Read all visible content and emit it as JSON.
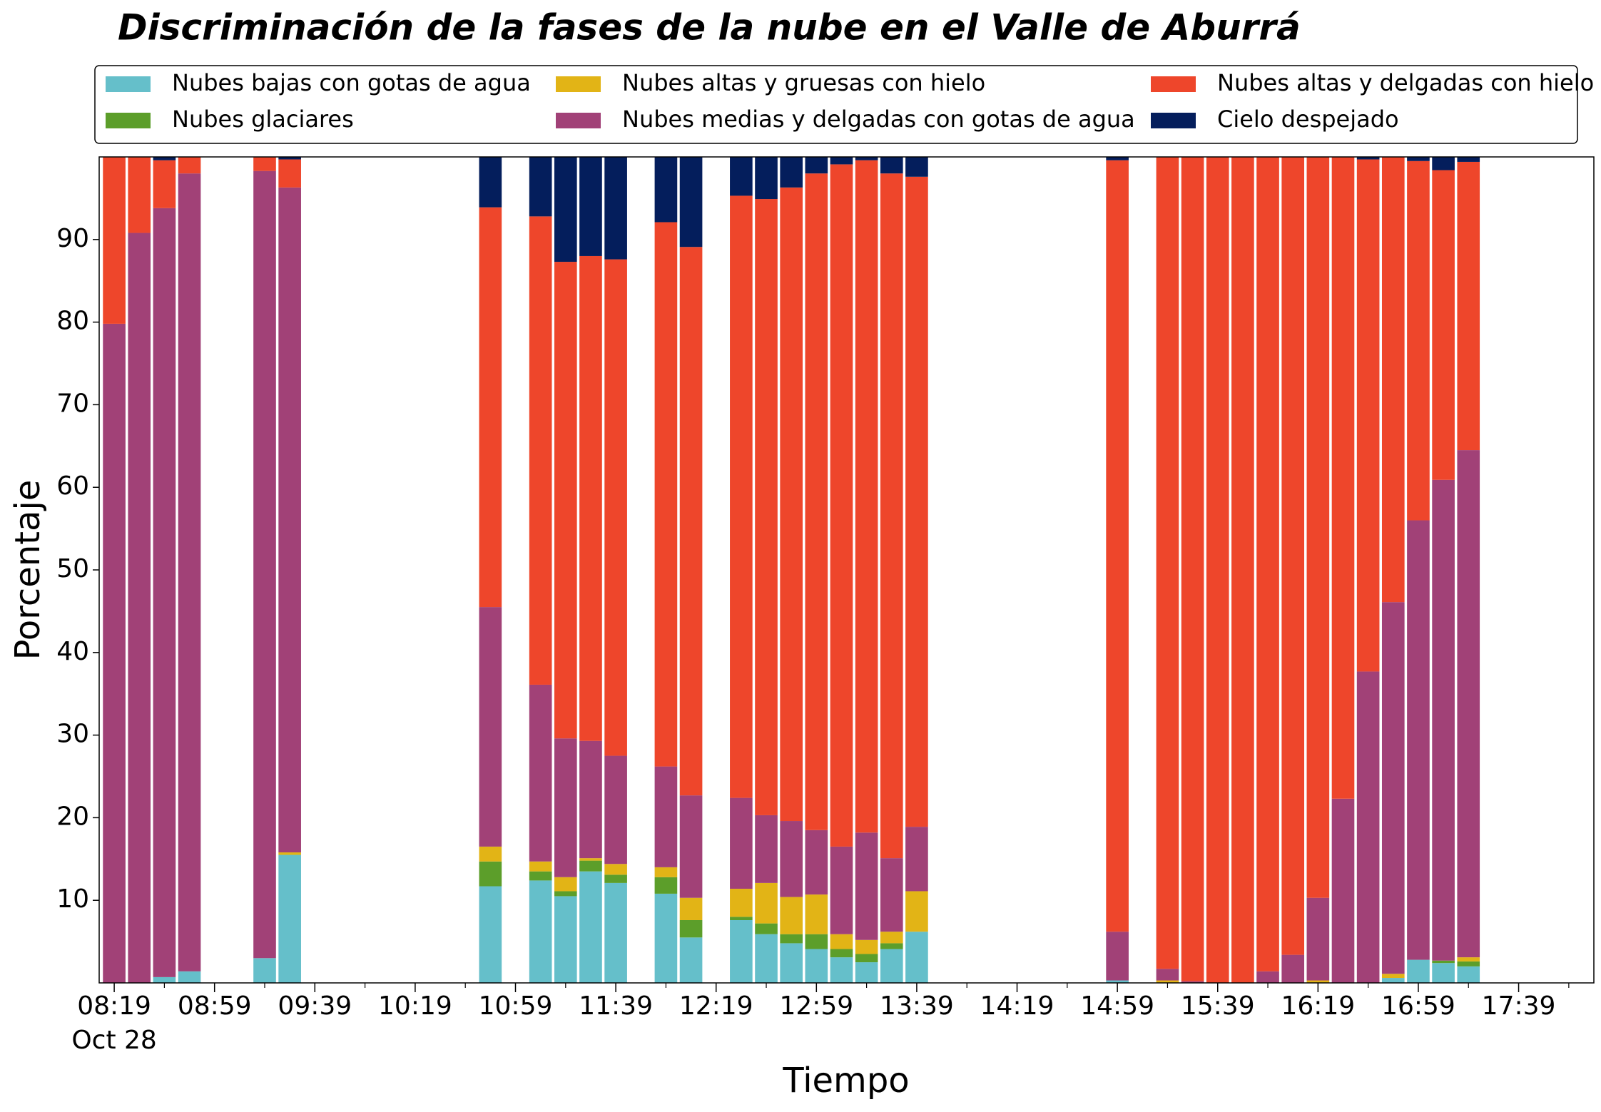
{
  "chart_data": {
    "type": "bar",
    "stacked": true,
    "title": "Discriminación de la fases de la nube en el Valle de Aburrá",
    "xlabel": "Tiempo",
    "ylabel": "Porcentaje",
    "x": [
      "08:19",
      "08:29",
      "08:39",
      "08:49",
      "09:19",
      "09:29",
      "10:49",
      "11:09",
      "11:19",
      "11:29",
      "11:39",
      "11:59",
      "12:09",
      "12:29",
      "12:39",
      "12:49",
      "12:59",
      "13:09",
      "13:19",
      "13:29",
      "13:39",
      "14:59",
      "15:19",
      "15:29",
      "15:39",
      "15:49",
      "15:59",
      "16:09",
      "16:19",
      "16:29",
      "16:39",
      "16:49",
      "16:59",
      "17:09",
      "17:19"
    ],
    "series": [
      {
        "name": "Nubes bajas con gotas de agua",
        "color": "#65bfca",
        "values": [
          0,
          0,
          0.7,
          1.4,
          3,
          15.5,
          11.7,
          12.4,
          10.5,
          13.5,
          12.1,
          10.8,
          5.5,
          7.6,
          5.9,
          4.8,
          4.1,
          3.1,
          2.5,
          4.1,
          6.2,
          0.3,
          0,
          0,
          0,
          0,
          0,
          0,
          0,
          0,
          0,
          0.6,
          2.8,
          2.4,
          2.0
        ]
      },
      {
        "name": "Nubes glaciares",
        "color": "#5c9e2a",
        "values": [
          0,
          0,
          0,
          0,
          0,
          0,
          3.0,
          1.1,
          0.6,
          1.3,
          1.0,
          2.0,
          2.1,
          0.4,
          1.3,
          1.1,
          1.8,
          1.0,
          1.0,
          0.7,
          0,
          0,
          0,
          0,
          0,
          0,
          0,
          0,
          0,
          0,
          0,
          0,
          0,
          0.3,
          0.6
        ]
      },
      {
        "name": "Nubes altas y gruesas con hielo",
        "color": "#e2b416",
        "values": [
          0,
          0,
          0,
          0,
          0,
          0.3,
          1.8,
          1.2,
          1.7,
          0.3,
          1.3,
          1.2,
          2.7,
          3.4,
          4.9,
          4.5,
          4.8,
          1.8,
          1.7,
          1.4,
          4.9,
          0,
          0.3,
          0,
          0,
          0,
          0,
          0,
          0.3,
          0,
          0,
          0.5,
          0,
          0,
          0.5
        ]
      },
      {
        "name": "Nubes medias y delgadas con gotas de agua",
        "color": "#a14177",
        "values": [
          79.8,
          90.8,
          93.1,
          96.6,
          95.3,
          80.5,
          29.0,
          21.4,
          16.8,
          14.2,
          13.1,
          12.2,
          12.4,
          11.0,
          8.2,
          9.2,
          7.8,
          10.6,
          13.0,
          8.9,
          7.8,
          5.9,
          1.4,
          0.2,
          0,
          0,
          1.4,
          3.4,
          10.0,
          22.3,
          37.7,
          45.0,
          53.2,
          58.2,
          61.4
        ]
      },
      {
        "name": "Nubes altas y delgadas con hielo",
        "color": "#ee462b",
        "values": [
          20.2,
          9.2,
          5.8,
          2.0,
          1.7,
          3.4,
          48.4,
          56.7,
          57.7,
          58.7,
          60.1,
          65.9,
          66.4,
          72.9,
          74.6,
          76.7,
          79.5,
          82.6,
          81.4,
          82.9,
          78.7,
          93.4,
          98.3,
          99.8,
          100,
          100,
          98.6,
          96.6,
          89.7,
          77.7,
          62.0,
          53.9,
          43.5,
          37.5,
          34.9
        ]
      },
      {
        "name": "Cielo despejado",
        "color": "#041e5c",
        "values": [
          0,
          0,
          0.4,
          0,
          0,
          0.3,
          6.1,
          7.2,
          12.7,
          12.0,
          12.4,
          7.9,
          10.9,
          4.7,
          5.1,
          3.7,
          2.0,
          0.9,
          0.4,
          2.0,
          2.4,
          0.4,
          0,
          0,
          0,
          0,
          0,
          0,
          0,
          0,
          0.3,
          0,
          0.5,
          1.6,
          0.6
        ]
      }
    ],
    "xlim": [
      "08:13",
      "18:09"
    ],
    "xticks": [
      {
        "value": "08:19",
        "label": "08:19",
        "sublabel": "Oct 28"
      },
      "08:59",
      "09:39",
      "10:19",
      "10:59",
      "11:39",
      "12:19",
      "12:59",
      "13:39",
      "14:19",
      "14:59",
      "15:39",
      "16:19",
      "16:59",
      "17:39"
    ],
    "xminorticks": [
      "08:39",
      "09:19",
      "09:59",
      "10:39",
      "11:19",
      "11:59",
      "12:39",
      "13:19",
      "13:59",
      "14:39",
      "15:19",
      "15:59",
      "16:39",
      "17:19",
      "17:59"
    ],
    "bar_width_minutes": 9,
    "ylim": [
      0,
      100
    ],
    "yticks": [
      10,
      20,
      30,
      40,
      50,
      60,
      70,
      80,
      90
    ]
  }
}
